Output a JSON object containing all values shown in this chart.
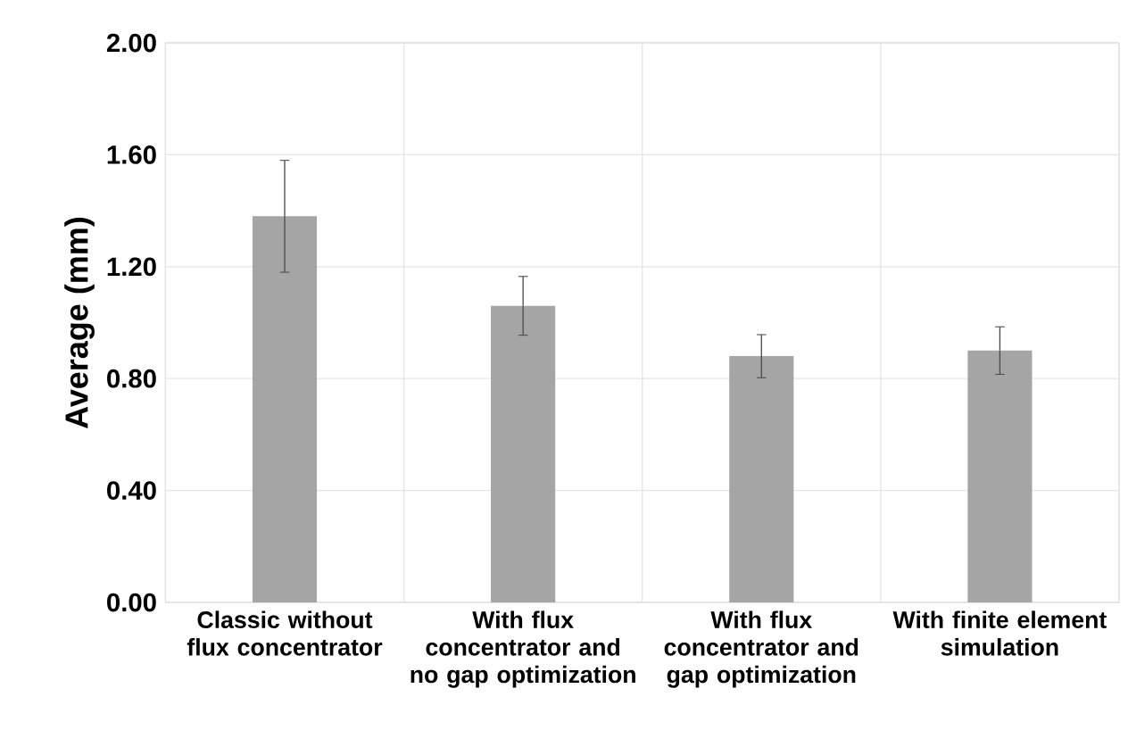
{
  "chart_data": {
    "type": "bar",
    "ylabel": "Average (mm)",
    "categories": [
      "Classic without flux concentrator",
      "With flux concentrator and no gap optimization",
      "With flux concentrator and gap optimization",
      "With finite element simulation"
    ],
    "values": [
      1.38,
      1.06,
      0.88,
      0.9
    ],
    "errors": [
      0.2,
      0.105,
      0.077,
      0.085
    ],
    "color": "#a5a5a5",
    "ylim": [
      0,
      2
    ],
    "yticks": [
      {
        "value": 0,
        "label": "0.00"
      },
      {
        "value": 0.4,
        "label": "0.40"
      },
      {
        "value": 0.8,
        "label": "0.80"
      },
      {
        "value": 1.2,
        "label": "1.20"
      },
      {
        "value": 1.6,
        "label": "1.60"
      },
      {
        "value": 2,
        "label": "2.00"
      }
    ],
    "grid": true
  }
}
